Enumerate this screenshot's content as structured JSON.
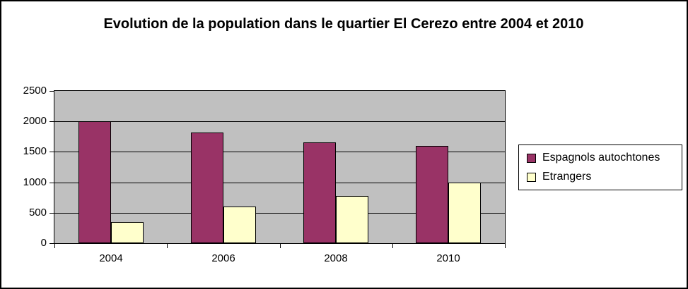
{
  "chart_data": {
    "type": "bar",
    "title": "Evolution de la population dans le quartier El Cerezo entre 2004 et 2010",
    "categories": [
      "2004",
      "2006",
      "2008",
      "2010"
    ],
    "series": [
      {
        "name": "Espagnols autochtones",
        "color": "#993366",
        "values": [
          2000,
          1820,
          1660,
          1600
        ]
      },
      {
        "name": "Etrangers",
        "color": "#FFFFCC",
        "values": [
          350,
          600,
          770,
          1000
        ]
      }
    ],
    "ylim": [
      0,
      2500
    ],
    "yticks": [
      0,
      500,
      1000,
      1500,
      2000,
      2500
    ],
    "grid": "horizontal",
    "legend_position": "right",
    "plot_bg": "#C0C0C0",
    "axis_color": "#000000",
    "outer_bg": "#FFFFFF"
  }
}
